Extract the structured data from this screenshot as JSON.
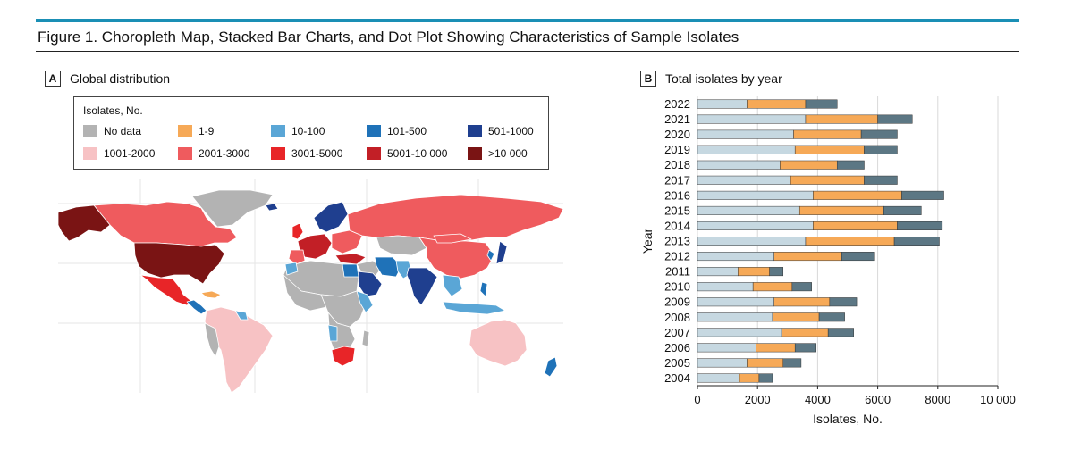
{
  "figure": {
    "title": "Figure 1. Choropleth Map, Stacked Bar Charts, and Dot Plot Showing Characteristics of Sample Isolates"
  },
  "panel_a": {
    "letter": "A",
    "title": "Global distribution",
    "legend": {
      "title": "Isolates, No.",
      "items": [
        {
          "label": "No data",
          "color": "#b3b3b3"
        },
        {
          "label": "1-9",
          "color": "#f6a957"
        },
        {
          "label": "10-100",
          "color": "#5aa6d6"
        },
        {
          "label": "101-500",
          "color": "#1f72b8"
        },
        {
          "label": "501-1000",
          "color": "#1f3f8f"
        },
        {
          "label": "1001-2000",
          "color": "#f7c2c4"
        },
        {
          "label": "2001-3000",
          "color": "#ef5b5e"
        },
        {
          "label": "3001-5000",
          "color": "#e82528"
        },
        {
          "label": "5001-10 000",
          "color": "#c21f26"
        },
        {
          "label": ">10 000",
          "color": "#7a1414"
        }
      ]
    }
  },
  "panel_b": {
    "letter": "B",
    "title": "Total isolates by year"
  },
  "chart_data": {
    "type": "bar",
    "orientation": "horizontal",
    "stacked": true,
    "categories": [
      "2022",
      "2021",
      "2020",
      "2019",
      "2018",
      "2017",
      "2016",
      "2015",
      "2014",
      "2013",
      "2012",
      "2011",
      "2010",
      "2009",
      "2008",
      "2007",
      "2006",
      "2005",
      "2004"
    ],
    "series": [
      {
        "color": "#c6d8e1",
        "values": [
          1650,
          3600,
          3200,
          3250,
          2750,
          3100,
          3850,
          3400,
          3850,
          3600,
          2550,
          1350,
          1850,
          2550,
          2500,
          2800,
          1950,
          1650,
          1400
        ]
      },
      {
        "color": "#f6a957",
        "values": [
          1950,
          2400,
          2250,
          2300,
          1900,
          2450,
          2950,
          2800,
          2800,
          2950,
          2250,
          1050,
          1300,
          1850,
          1550,
          1550,
          1300,
          1200,
          650
        ]
      },
      {
        "color": "#5c7784",
        "values": [
          1050,
          1150,
          1200,
          1100,
          900,
          1100,
          1400,
          1250,
          1500,
          1500,
          1100,
          450,
          650,
          900,
          850,
          850,
          700,
          600,
          450
        ]
      }
    ],
    "xlabel": "Isolates, No.",
    "ylabel": "Year",
    "xlim": [
      0,
      10000
    ],
    "xticks": [
      "0",
      "2000",
      "4000",
      "6000",
      "8000",
      "10 000"
    ],
    "grid": true,
    "legend": "none"
  }
}
